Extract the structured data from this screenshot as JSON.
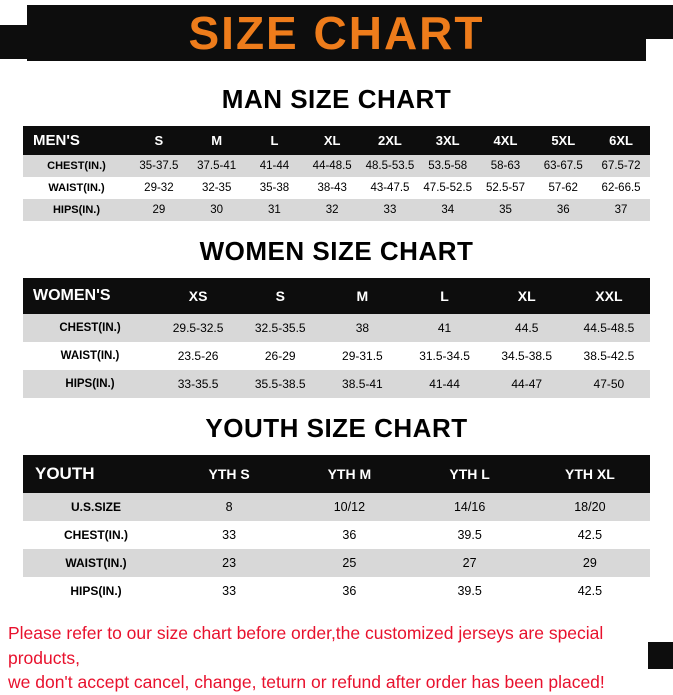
{
  "colors": {
    "accent_orange": "#ee7c1b",
    "banner_black": "#0d0d0d",
    "stripe_gray": "#d8d8d8",
    "footer_red": "#e8112d"
  },
  "banner": {
    "title": "SIZE CHART"
  },
  "sections": [
    {
      "heading": "MAN SIZE CHART",
      "table": {
        "header": [
          "MEN'S",
          "S",
          "M",
          "L",
          "XL",
          "2XL",
          "3XL",
          "4XL",
          "5XL",
          "6XL"
        ],
        "rows": [
          {
            "label": "CHEST(IN.)",
            "values": [
              "35-37.5",
              "37.5-41",
              "41-44",
              "44-48.5",
              "48.5-53.5",
              "53.5-58",
              "58-63",
              "63-67.5",
              "67.5-72"
            ]
          },
          {
            "label": "WAIST(IN.)",
            "values": [
              "29-32",
              "32-35",
              "35-38",
              "38-43",
              "43-47.5",
              "47.5-52.5",
              "52.5-57",
              "57-62",
              "62-66.5"
            ]
          },
          {
            "label": "HIPS(IN.)",
            "values": [
              "29",
              "30",
              "31",
              "32",
              "33",
              "34",
              "35",
              "36",
              "37"
            ]
          }
        ]
      }
    },
    {
      "heading": "WOMEN SIZE CHART",
      "table": {
        "header": [
          "WOMEN'S",
          "XS",
          "S",
          "M",
          "L",
          "XL",
          "XXL"
        ],
        "rows": [
          {
            "label": "CHEST(IN.)",
            "values": [
              "29.5-32.5",
              "32.5-35.5",
              "38",
              "41",
              "44.5",
              "44.5-48.5"
            ]
          },
          {
            "label": "WAIST(IN.)",
            "values": [
              "23.5-26",
              "26-29",
              "29-31.5",
              "31.5-34.5",
              "34.5-38.5",
              "38.5-42.5"
            ]
          },
          {
            "label": "HIPS(IN.)",
            "values": [
              "33-35.5",
              "35.5-38.5",
              "38.5-41",
              "41-44",
              "44-47",
              "47-50"
            ]
          }
        ]
      }
    },
    {
      "heading": "YOUTH SIZE CHART",
      "table": {
        "header": [
          "YOUTH",
          "YTH S",
          "YTH M",
          "YTH L",
          "YTH XL"
        ],
        "rows": [
          {
            "label": "U.S.SIZE",
            "values": [
              "8",
              "10/12",
              "14/16",
              "18/20"
            ]
          },
          {
            "label": "CHEST(IN.)",
            "values": [
              "33",
              "36",
              "39.5",
              "42.5"
            ]
          },
          {
            "label": "WAIST(IN.)",
            "values": [
              "23",
              "25",
              "27",
              "29"
            ]
          },
          {
            "label": "HIPS(IN.)",
            "values": [
              "33",
              "36",
              "39.5",
              "42.5"
            ]
          }
        ]
      }
    }
  ],
  "footer": {
    "line1": "Please refer to our size chart before order,the customized jerseys are special products,",
    "line2": "we don't accept cancel, change, teturn or refund after order has been placed!"
  }
}
